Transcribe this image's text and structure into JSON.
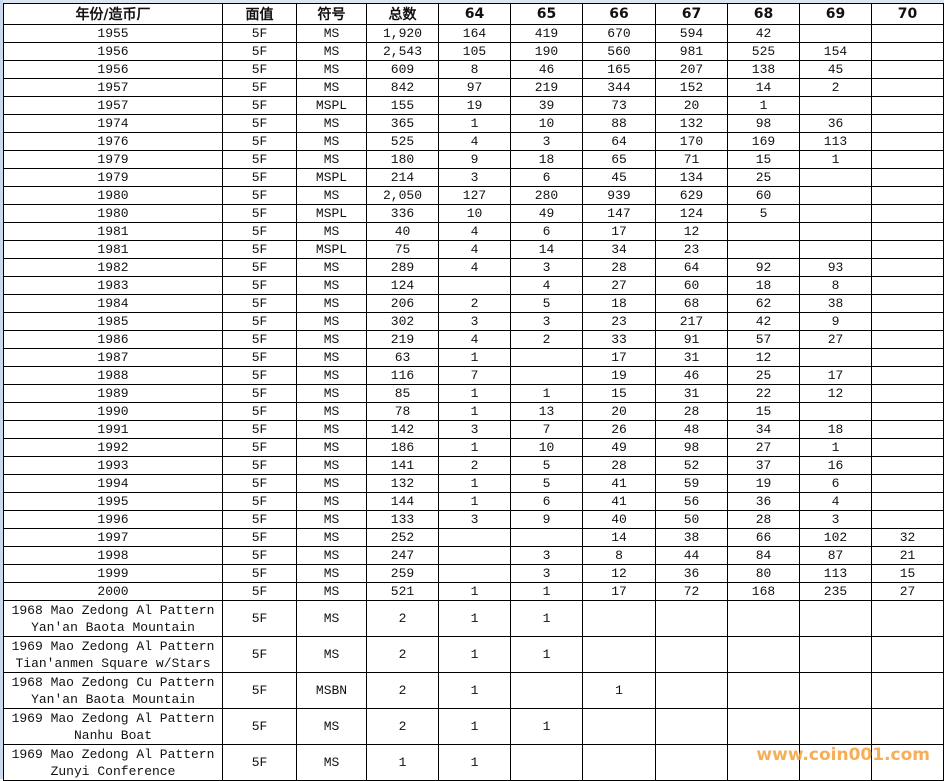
{
  "watermark": "www.coin001.com",
  "headers": [
    "年份/造币厂",
    "面值",
    "符号",
    "总数",
    "64",
    "65",
    "66",
    "67",
    "68",
    "69",
    "70"
  ],
  "rows": [
    [
      "1955",
      "5F",
      "MS",
      "1,920",
      "164",
      "419",
      "670",
      "594",
      "42",
      "",
      ""
    ],
    [
      "1956",
      "5F",
      "MS",
      "2,543",
      "105",
      "190",
      "560",
      "981",
      "525",
      "154",
      ""
    ],
    [
      "1956",
      "5F",
      "MS",
      "609",
      "8",
      "46",
      "165",
      "207",
      "138",
      "45",
      ""
    ],
    [
      "1957",
      "5F",
      "MS",
      "842",
      "97",
      "219",
      "344",
      "152",
      "14",
      "2",
      ""
    ],
    [
      "1957",
      "5F",
      "MSPL",
      "155",
      "19",
      "39",
      "73",
      "20",
      "1",
      "",
      ""
    ],
    [
      "1974",
      "5F",
      "MS",
      "365",
      "1",
      "10",
      "88",
      "132",
      "98",
      "36",
      ""
    ],
    [
      "1976",
      "5F",
      "MS",
      "525",
      "4",
      "3",
      "64",
      "170",
      "169",
      "113",
      ""
    ],
    [
      "1979",
      "5F",
      "MS",
      "180",
      "9",
      "18",
      "65",
      "71",
      "15",
      "1",
      ""
    ],
    [
      "1979",
      "5F",
      "MSPL",
      "214",
      "3",
      "6",
      "45",
      "134",
      "25",
      "",
      ""
    ],
    [
      "1980",
      "5F",
      "MS",
      "2,050",
      "127",
      "280",
      "939",
      "629",
      "60",
      "",
      ""
    ],
    [
      "1980",
      "5F",
      "MSPL",
      "336",
      "10",
      "49",
      "147",
      "124",
      "5",
      "",
      ""
    ],
    [
      "1981",
      "5F",
      "MS",
      "40",
      "4",
      "6",
      "17",
      "12",
      "",
      "",
      ""
    ],
    [
      "1981",
      "5F",
      "MSPL",
      "75",
      "4",
      "14",
      "34",
      "23",
      "",
      "",
      ""
    ],
    [
      "1982",
      "5F",
      "MS",
      "289",
      "4",
      "3",
      "28",
      "64",
      "92",
      "93",
      ""
    ],
    [
      "1983",
      "5F",
      "MS",
      "124",
      "",
      "4",
      "27",
      "60",
      "18",
      "8",
      ""
    ],
    [
      "1984",
      "5F",
      "MS",
      "206",
      "2",
      "5",
      "18",
      "68",
      "62",
      "38",
      ""
    ],
    [
      "1985",
      "5F",
      "MS",
      "302",
      "3",
      "3",
      "23",
      "217",
      "42",
      "9",
      ""
    ],
    [
      "1986",
      "5F",
      "MS",
      "219",
      "4",
      "2",
      "33",
      "91",
      "57",
      "27",
      ""
    ],
    [
      "1987",
      "5F",
      "MS",
      "63",
      "1",
      "",
      "17",
      "31",
      "12",
      "",
      ""
    ],
    [
      "1988",
      "5F",
      "MS",
      "116",
      "7",
      "",
      "19",
      "46",
      "25",
      "17",
      ""
    ],
    [
      "1989",
      "5F",
      "MS",
      "85",
      "1",
      "1",
      "15",
      "31",
      "22",
      "12",
      ""
    ],
    [
      "1990",
      "5F",
      "MS",
      "78",
      "1",
      "13",
      "20",
      "28",
      "15",
      "",
      ""
    ],
    [
      "1991",
      "5F",
      "MS",
      "142",
      "3",
      "7",
      "26",
      "48",
      "34",
      "18",
      ""
    ],
    [
      "1992",
      "5F",
      "MS",
      "186",
      "1",
      "10",
      "49",
      "98",
      "27",
      "1",
      ""
    ],
    [
      "1993",
      "5F",
      "MS",
      "141",
      "2",
      "5",
      "28",
      "52",
      "37",
      "16",
      ""
    ],
    [
      "1994",
      "5F",
      "MS",
      "132",
      "1",
      "5",
      "41",
      "59",
      "19",
      "6",
      ""
    ],
    [
      "1995",
      "5F",
      "MS",
      "144",
      "1",
      "6",
      "41",
      "56",
      "36",
      "4",
      ""
    ],
    [
      "1996",
      "5F",
      "MS",
      "133",
      "3",
      "9",
      "40",
      "50",
      "28",
      "3",
      ""
    ],
    [
      "1997",
      "5F",
      "MS",
      "252",
      "",
      "",
      "14",
      "38",
      "66",
      "102",
      "32"
    ],
    [
      "1998",
      "5F",
      "MS",
      "247",
      "",
      "3",
      "8",
      "44",
      "84",
      "87",
      "21"
    ],
    [
      "1999",
      "5F",
      "MS",
      "259",
      "",
      "3",
      "12",
      "36",
      "80",
      "113",
      "15"
    ],
    [
      "2000",
      "5F",
      "MS",
      "521",
      "1",
      "1",
      "17",
      "72",
      "168",
      "235",
      "27"
    ],
    [
      "1968 Mao Zedong Al Pattern Yan'an Baota Mountain",
      "5F",
      "MS",
      "2",
      "1",
      "1",
      "",
      "",
      "",
      "",
      ""
    ],
    [
      "1969 Mao Zedong Al Pattern Tian'anmen Square w/Stars",
      "5F",
      "MS",
      "2",
      "1",
      "1",
      "",
      "",
      "",
      "",
      ""
    ],
    [
      "1968 Mao Zedong Cu Pattern Yan'an Baota Mountain",
      "5F",
      "MSBN",
      "2",
      "1",
      "",
      "1",
      "",
      "",
      "",
      ""
    ],
    [
      "1969 Mao Zedong Al Pattern Nanhu Boat",
      "5F",
      "MS",
      "2",
      "1",
      "1",
      "",
      "",
      "",
      "",
      ""
    ],
    [
      "1969 Mao Zedong Al Pattern Zunyi Conference",
      "5F",
      "MS",
      "1",
      "1",
      "",
      "",
      "",
      "",
      "",
      ""
    ]
  ]
}
